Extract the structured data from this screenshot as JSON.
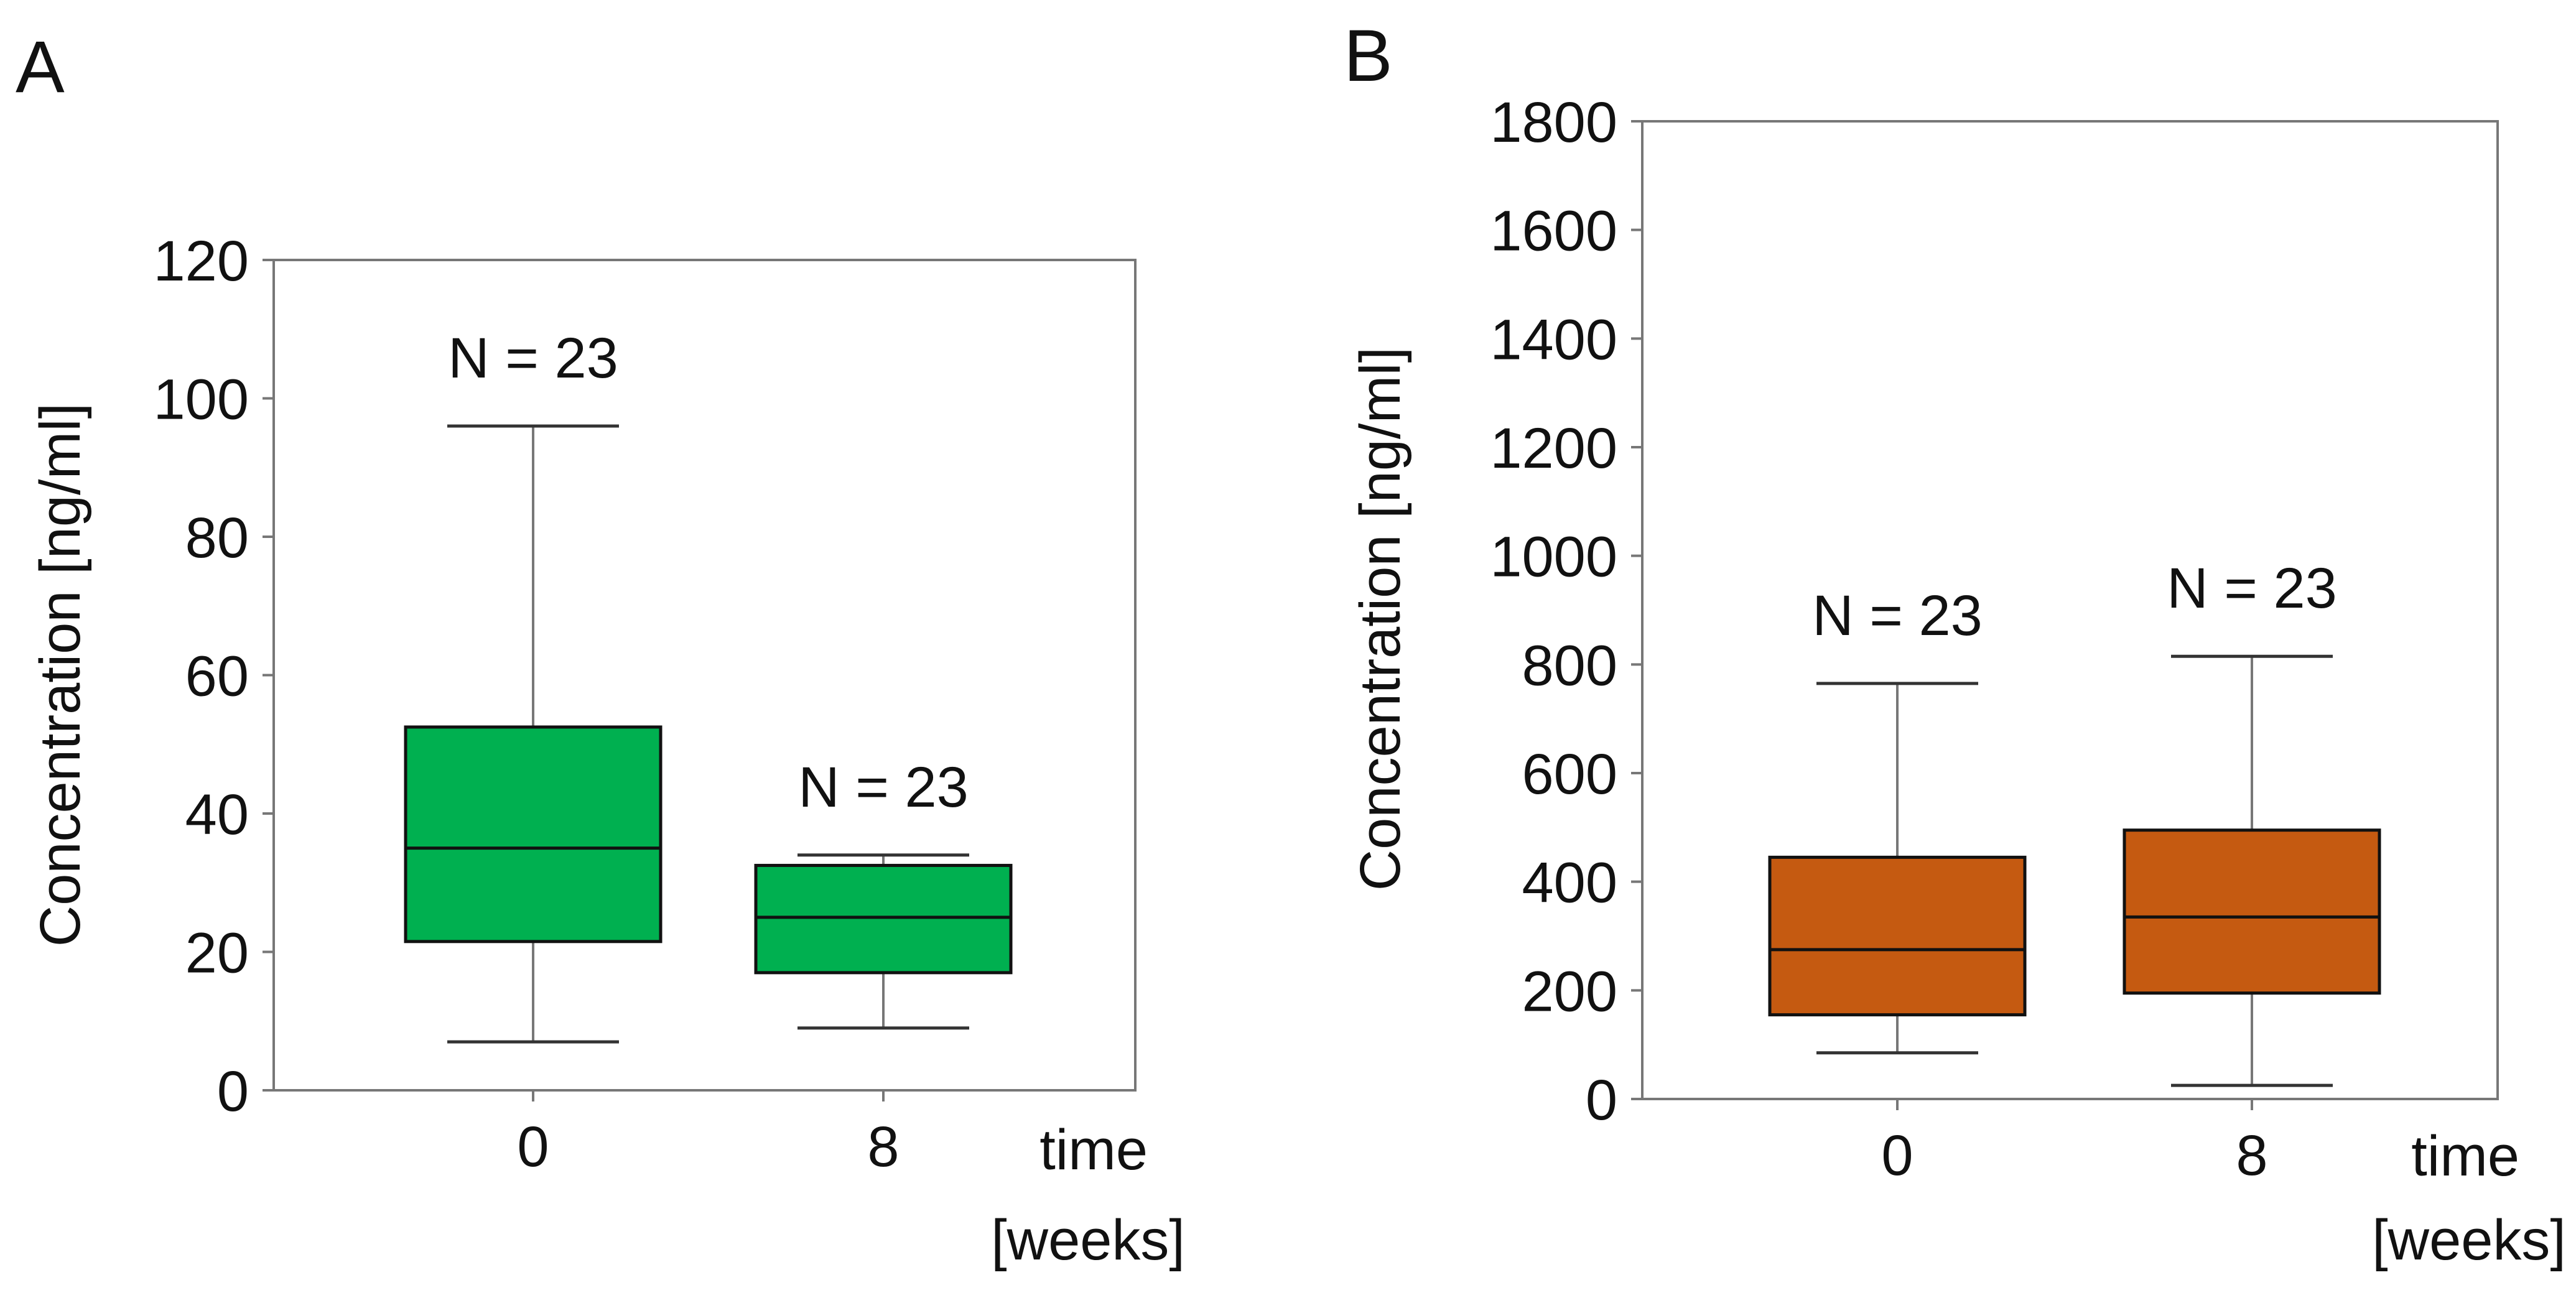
{
  "chart_data": [
    {
      "type": "box",
      "panel_label": "A",
      "ylabel": "Concentration  [ng/ml]",
      "xlabel_line1": "time",
      "xlabel_line2": "[weeks]",
      "ylim": [
        0,
        120
      ],
      "yticks": [
        0,
        20,
        40,
        60,
        80,
        100,
        120
      ],
      "box_color": "#00b050",
      "grid": false,
      "boxes": [
        {
          "category": "0",
          "n_label": "N = 23",
          "min": 7,
          "q1": 21.5,
          "median": 35,
          "q3": 52.5,
          "max": 96
        },
        {
          "category": "8",
          "n_label": "N = 23",
          "min": 9,
          "q1": 17,
          "median": 25,
          "q3": 32.5,
          "max": 34
        }
      ]
    },
    {
      "type": "box",
      "panel_label": "B",
      "ylabel": "Concentration  [ng/ml]",
      "xlabel_line1": "time",
      "xlabel_line2": "[weeks]",
      "ylim": [
        0,
        1800
      ],
      "yticks": [
        0,
        200,
        400,
        600,
        800,
        1000,
        1200,
        1400,
        1600,
        1800
      ],
      "box_color": "#c55a11",
      "grid": false,
      "boxes": [
        {
          "category": "0",
          "n_label": "N = 23",
          "min": 85,
          "q1": 155,
          "median": 275,
          "q3": 445,
          "max": 765
        },
        {
          "category": "8",
          "n_label": "N = 23",
          "min": 25,
          "q1": 195,
          "median": 335,
          "q3": 495,
          "max": 815
        }
      ]
    }
  ]
}
